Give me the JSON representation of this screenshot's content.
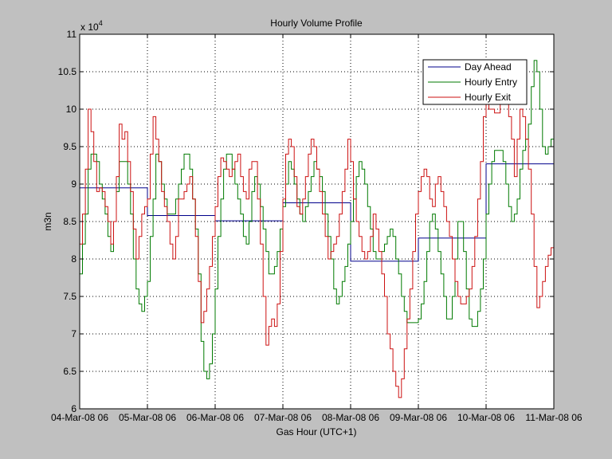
{
  "chart_data": {
    "type": "line",
    "title": "Hourly Volume Profile",
    "xlabel": "Gas Hour (UTC+1)",
    "ylabel": "m3n",
    "y_multiplier_label": "x 10",
    "y_multiplier_exponent": "4",
    "x_tick_labels": [
      "04-Mar-08 06",
      "05-Mar-08 06",
      "06-Mar-08 06",
      "07-Mar-08 06",
      "08-Mar-08 06",
      "09-Mar-08 06",
      "10-Mar-08 06",
      "11-Mar-08 06"
    ],
    "y_tick_labels": [
      "6",
      "6.5",
      "7",
      "7.5",
      "8",
      "8.5",
      "9",
      "9.5",
      "10",
      "10.5",
      "11"
    ],
    "y_ticks": [
      6,
      6.5,
      7,
      7.5,
      8,
      8.5,
      9,
      9.5,
      10,
      10.5,
      11
    ],
    "xlim": [
      0,
      168
    ],
    "ylim": [
      6,
      11
    ],
    "grid": true,
    "legend_position": "top-right",
    "x_unit": "hours from 04-Mar-08 06",
    "y_unit": "x 10^4 m3n",
    "series": [
      {
        "name": "Day Ahead",
        "color": "#00008b",
        "values": [
          8.95,
          8.95,
          8.95,
          8.95,
          8.95,
          8.95,
          8.95,
          8.95,
          8.95,
          8.95,
          8.95,
          8.95,
          8.95,
          8.95,
          8.95,
          8.95,
          8.95,
          8.95,
          8.95,
          8.95,
          8.95,
          8.95,
          8.95,
          8.95,
          8.58,
          8.58,
          8.58,
          8.58,
          8.58,
          8.58,
          8.58,
          8.58,
          8.58,
          8.58,
          8.58,
          8.58,
          8.58,
          8.58,
          8.58,
          8.58,
          8.58,
          8.58,
          8.58,
          8.58,
          8.58,
          8.58,
          8.58,
          8.58,
          8.51,
          8.51,
          8.51,
          8.51,
          8.51,
          8.51,
          8.51,
          8.51,
          8.51,
          8.51,
          8.51,
          8.51,
          8.51,
          8.51,
          8.51,
          8.51,
          8.51,
          8.51,
          8.51,
          8.51,
          8.51,
          8.51,
          8.51,
          8.51,
          8.75,
          8.75,
          8.75,
          8.75,
          8.75,
          8.75,
          8.75,
          8.75,
          8.75,
          8.75,
          8.75,
          8.75,
          8.75,
          8.75,
          8.75,
          8.75,
          8.75,
          8.75,
          8.75,
          8.75,
          8.75,
          8.75,
          8.75,
          8.75,
          7.97,
          7.97,
          7.97,
          7.97,
          7.97,
          7.97,
          7.97,
          7.97,
          7.97,
          7.97,
          7.97,
          7.97,
          7.97,
          7.97,
          7.97,
          7.97,
          7.97,
          7.97,
          7.97,
          7.97,
          7.97,
          7.97,
          7.97,
          7.97,
          8.28,
          8.28,
          8.28,
          8.28,
          8.28,
          8.28,
          8.28,
          8.28,
          8.28,
          8.28,
          8.28,
          8.28,
          8.28,
          8.28,
          8.28,
          8.28,
          8.28,
          8.28,
          8.28,
          8.28,
          8.28,
          8.28,
          8.28,
          8.28,
          9.27,
          9.27,
          9.27,
          9.27,
          9.27,
          9.27,
          9.27,
          9.27,
          9.27,
          9.27,
          9.27,
          9.27,
          9.27,
          9.27,
          9.27,
          9.27,
          9.27,
          9.27,
          9.27,
          9.27,
          9.27,
          9.27,
          9.27,
          9.27
        ]
      },
      {
        "name": "Hourly Entry",
        "color": "#007a00",
        "values": [
          7.8,
          8.2,
          8.6,
          9.2,
          9.4,
          9.4,
          9.3,
          9.0,
          8.8,
          8.6,
          8.3,
          8.1,
          8.5,
          8.9,
          9.3,
          9.3,
          9.3,
          9.0,
          8.6,
          8.0,
          7.6,
          7.4,
          7.3,
          7.5,
          7.7,
          8.3,
          8.8,
          9.4,
          9.3,
          9.0,
          8.8,
          8.6,
          8.6,
          8.6,
          8.8,
          9.0,
          9.2,
          9.4,
          9.4,
          9.2,
          8.8,
          8.4,
          7.8,
          6.9,
          6.5,
          6.4,
          6.6,
          7.0,
          7.6,
          8.3,
          8.8,
          9.2,
          9.4,
          9.4,
          9.2,
          9.0,
          8.8,
          8.6,
          8.3,
          8.2,
          8.5,
          8.9,
          9.1,
          9.0,
          8.7,
          8.4,
          8.1,
          7.8,
          7.8,
          7.9,
          8.1,
          8.4,
          8.7,
          9.0,
          9.3,
          9.2,
          9.0,
          8.8,
          8.6,
          8.5,
          8.7,
          8.9,
          9.1,
          9.3,
          9.2,
          9.1,
          8.9,
          8.6,
          8.3,
          8.0,
          7.6,
          7.4,
          7.5,
          7.7,
          7.9,
          8.2,
          8.5,
          8.8,
          9.1,
          9.3,
          9.2,
          9.0,
          8.7,
          8.4,
          8.1,
          8.0,
          8.0,
          8.1,
          8.2,
          8.3,
          8.4,
          8.3,
          8.0,
          7.8,
          7.5,
          7.3,
          7.15,
          7.15,
          7.15,
          7.15,
          7.2,
          7.4,
          7.7,
          8.1,
          8.5,
          8.6,
          8.4,
          8.1,
          7.8,
          7.5,
          7.2,
          7.2,
          7.5,
          8.0,
          8.5,
          8.5,
          8.1,
          7.6,
          7.2,
          7.1,
          7.1,
          7.3,
          7.6,
          8.0,
          8.6,
          9.0,
          9.3,
          9.45,
          9.45,
          9.45,
          9.3,
          9.0,
          8.7,
          8.5,
          8.6,
          8.8,
          9.2,
          9.45,
          9.6,
          9.8,
          10.3,
          10.65,
          10.5,
          10.0,
          9.5,
          9.4,
          9.5,
          9.6
        ]
      },
      {
        "name": "Hourly Exit",
        "color": "#cc1111",
        "values": [
          8.2,
          8.6,
          9.2,
          10.0,
          9.7,
          9.3,
          8.9,
          8.95,
          8.9,
          8.7,
          8.5,
          8.2,
          8.5,
          9.1,
          9.8,
          9.6,
          9.7,
          9.3,
          8.9,
          8.4,
          8.0,
          8.3,
          8.6,
          8.7,
          8.8,
          9.4,
          9.9,
          9.6,
          9.3,
          8.9,
          8.7,
          8.5,
          8.2,
          8.0,
          8.3,
          8.8,
          8.8,
          8.9,
          9.0,
          9.1,
          8.8,
          8.3,
          7.7,
          7.15,
          7.3,
          7.6,
          7.9,
          8.3,
          8.7,
          9.1,
          9.35,
          9.3,
          9.2,
          9.1,
          9.2,
          9.3,
          9.4,
          9.1,
          8.9,
          8.8,
          9.2,
          9.3,
          9.3,
          8.8,
          8.2,
          7.5,
          6.85,
          7.1,
          7.2,
          7.1,
          7.4,
          8.1,
          8.8,
          9.4,
          9.6,
          9.5,
          9.1,
          8.7,
          8.6,
          8.8,
          9.1,
          9.4,
          9.6,
          9.5,
          9.2,
          8.9,
          8.6,
          8.3,
          8.0,
          8.1,
          8.2,
          8.3,
          8.6,
          8.9,
          9.2,
          9.6,
          9.3,
          8.8,
          8.5,
          8.3,
          8.1,
          8.0,
          8.1,
          8.3,
          8.6,
          8.4,
          8.1,
          7.8,
          7.5,
          7.0,
          6.8,
          6.5,
          6.3,
          6.15,
          6.4,
          6.8,
          7.2,
          7.6,
          8.1,
          8.6,
          8.9,
          9.1,
          9.2,
          9.1,
          8.8,
          8.7,
          9.0,
          9.1,
          8.9,
          8.7,
          8.5,
          8.3,
          8.0,
          7.7,
          7.5,
          7.4,
          7.4,
          7.5,
          7.6,
          7.9,
          8.3,
          8.8,
          9.3,
          9.9,
          10.2,
          10.0,
          10.0,
          9.95,
          9.95,
          10.1,
          10.3,
          10.1,
          9.9,
          9.6,
          9.1,
          9.6,
          10.0,
          9.9,
          9.6,
          9.2,
          8.6,
          7.9,
          7.35,
          7.5,
          7.7,
          7.9,
          8.05,
          8.15
        ]
      }
    ]
  }
}
